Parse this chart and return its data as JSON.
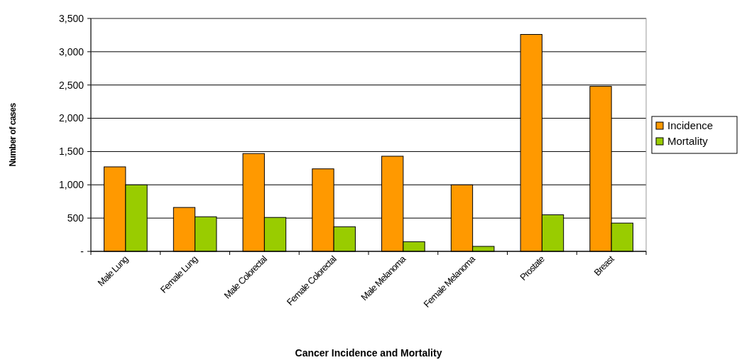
{
  "chart_data": {
    "type": "bar",
    "xlabel": "Cancer Incidence and Mortality",
    "ylabel": "Number of cases",
    "categories": [
      "Male Lung",
      "Female Lung",
      "Male Colorectal",
      "Female Colorectal",
      "Male Melanoma",
      "Female Melanoma",
      "Prostate",
      "Breast"
    ],
    "series": [
      {
        "name": "Incidence",
        "color": "#ff9900",
        "values": [
          1270,
          660,
          1470,
          1240,
          1430,
          1000,
          3260,
          2480
        ]
      },
      {
        "name": "Mortality",
        "color": "#99cc00",
        "values": [
          1000,
          520,
          510,
          370,
          145,
          75,
          550,
          425
        ]
      }
    ],
    "ylim": [
      0,
      3500
    ],
    "yticks": [
      {
        "value": 0,
        "label": "-"
      },
      500,
      {
        "value": 1000,
        "label": "1,000"
      },
      {
        "value": 1500,
        "label": "1,500"
      },
      {
        "value": 2000,
        "label": "2,000"
      },
      {
        "value": 2500,
        "label": "2,500"
      },
      {
        "value": 3000,
        "label": "3,000"
      },
      {
        "value": 3500,
        "label": "3,500"
      }
    ],
    "grid": "y",
    "legend": "right"
  }
}
